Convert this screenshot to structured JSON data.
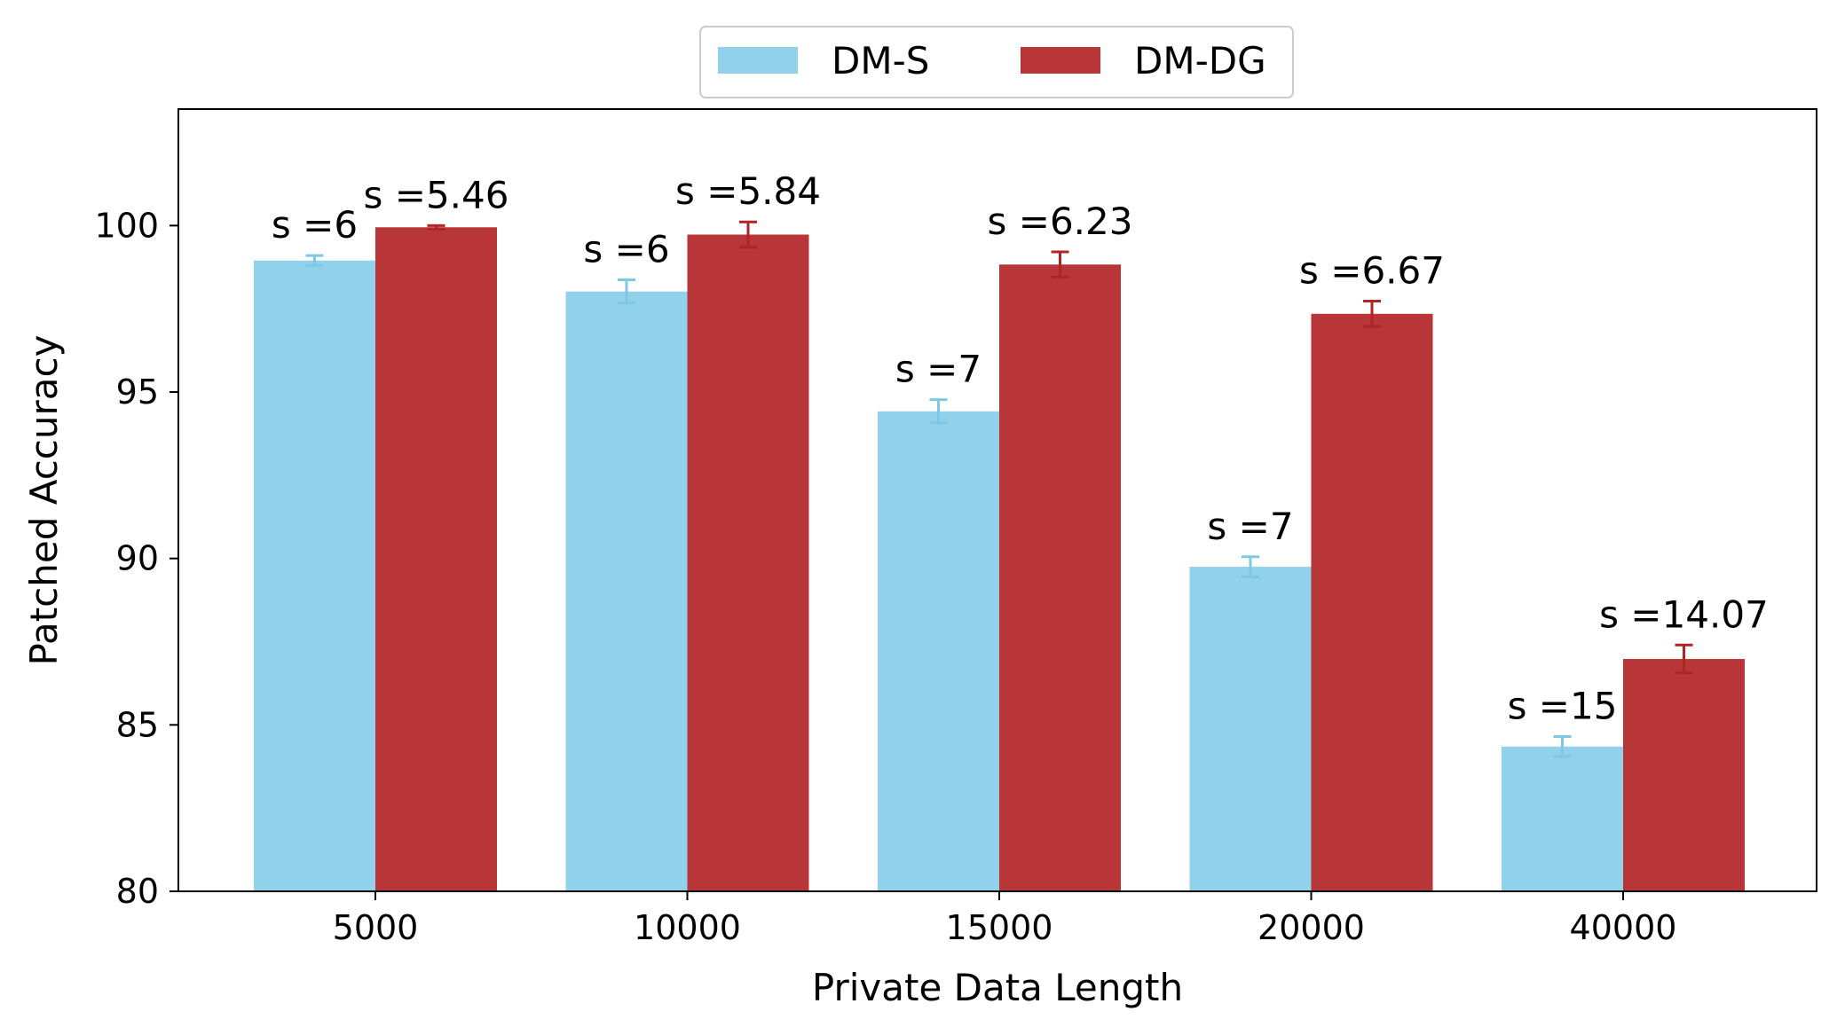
{
  "chart_data": {
    "type": "bar",
    "title": "",
    "xlabel": "Private Data Length",
    "ylabel": "Patched Accuracy",
    "ylim": [
      80,
      103.5
    ],
    "yticks": [
      80,
      85,
      90,
      95,
      100
    ],
    "ytick_labels": [
      "80",
      "85",
      "90",
      "95",
      "100"
    ],
    "categories": [
      "5000",
      "10000",
      "15000",
      "20000",
      "40000"
    ],
    "legend_position": "top-center",
    "series": [
      {
        "name": "DM-S",
        "color": "#92d1ec",
        "error_color": "#7ec8e6",
        "values": [
          98.95,
          98.02,
          94.42,
          89.75,
          84.35
        ],
        "errors": [
          0.15,
          0.35,
          0.35,
          0.3,
          0.3
        ],
        "labels": [
          "s =6",
          "s =6",
          "s =7",
          "s =7",
          "s =15"
        ]
      },
      {
        "name": "DM-DG",
        "color": "#b83638",
        "error_color": "#b02327",
        "values": [
          99.95,
          99.73,
          98.83,
          97.35,
          86.98
        ],
        "errors": [
          0.05,
          0.38,
          0.38,
          0.38,
          0.42
        ],
        "labels": [
          "s =5.46",
          "s =5.84",
          "s =6.23",
          "s =6.67",
          "s =14.07"
        ]
      }
    ]
  }
}
